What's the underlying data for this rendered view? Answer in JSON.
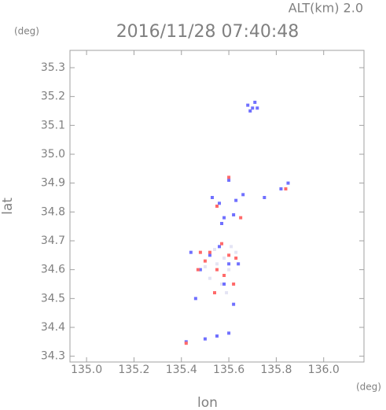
{
  "chart_data": {
    "type": "scatter",
    "title": "2016/11/28 07:40:48",
    "subtitle": "ALT(km) 2.0",
    "y_unit": "(deg)",
    "x_unit": "(deg)",
    "x_label": "lon",
    "y_label": "lat",
    "xlim": [
      134.93,
      136.17
    ],
    "ylim": [
      34.28,
      35.36
    ],
    "xticks": [
      {
        "value": 135.0,
        "label": "135.0"
      },
      135.2,
      135.4,
      135.6,
      135.8,
      {
        "value": 136.0,
        "label": "136.0"
      }
    ],
    "yticks": [
      34.3,
      34.4,
      34.5,
      34.6,
      34.7,
      34.8,
      34.9,
      {
        "value": 35.0,
        "label": "35.0"
      },
      35.1,
      35.2,
      35.3
    ],
    "series": [
      {
        "color": "#e4e4f4",
        "x": [
          135.55,
          135.58,
          135.6,
          135.52,
          135.63,
          135.57,
          135.5,
          135.61,
          135.54,
          135.59
        ],
        "y": [
          34.62,
          34.64,
          34.6,
          34.57,
          34.66,
          34.55,
          34.61,
          34.68,
          34.67,
          34.52
        ]
      },
      {
        "color": "#7070ff",
        "x": [
          135.68,
          135.7,
          135.69,
          135.71,
          135.72,
          135.53,
          135.56,
          135.63,
          135.66,
          135.58,
          135.62,
          135.75,
          135.82,
          135.85,
          135.52,
          135.48,
          135.58,
          135.62,
          135.46,
          135.6,
          135.42,
          135.5,
          135.55,
          135.6,
          135.64,
          135.56,
          135.6,
          135.44,
          135.57
        ],
        "y": [
          35.17,
          35.16,
          35.15,
          35.18,
          35.16,
          34.85,
          34.83,
          34.84,
          34.86,
          34.78,
          34.79,
          34.85,
          34.88,
          34.9,
          34.65,
          34.6,
          34.55,
          34.48,
          34.5,
          34.62,
          34.35,
          34.36,
          34.37,
          34.38,
          34.62,
          34.68,
          34.91,
          34.66,
          34.76
        ]
      },
      {
        "color": "#ff6a6a",
        "x": [
          135.52,
          135.55,
          135.58,
          135.62,
          135.47,
          135.5,
          135.6,
          135.54,
          135.6,
          135.42,
          135.55,
          135.65,
          135.84,
          135.48,
          135.57,
          135.63
        ],
        "y": [
          34.66,
          34.6,
          34.58,
          34.55,
          34.6,
          34.63,
          34.65,
          34.52,
          34.92,
          34.345,
          34.82,
          34.78,
          34.88,
          34.66,
          34.69,
          34.64
        ]
      }
    ]
  }
}
